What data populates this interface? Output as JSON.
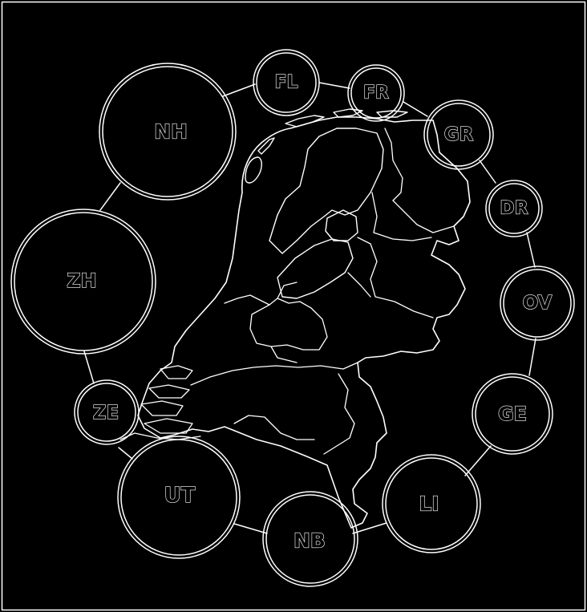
{
  "map": {
    "bubbles": [
      {
        "id": "fl",
        "label": "FL"
      },
      {
        "id": "fr",
        "label": "FR"
      },
      {
        "id": "gr",
        "label": "GR"
      },
      {
        "id": "dr",
        "label": "DR"
      },
      {
        "id": "ov",
        "label": "OV"
      },
      {
        "id": "ge",
        "label": "GE"
      },
      {
        "id": "li",
        "label": "LI"
      },
      {
        "id": "nb",
        "label": "NB"
      },
      {
        "id": "ut",
        "label": "UT"
      },
      {
        "id": "ze",
        "label": "ZE"
      },
      {
        "id": "zh",
        "label": "ZH"
      },
      {
        "id": "nh",
        "label": "NH"
      }
    ],
    "colors": {
      "background": "#000000",
      "line": "#ffffff"
    }
  }
}
